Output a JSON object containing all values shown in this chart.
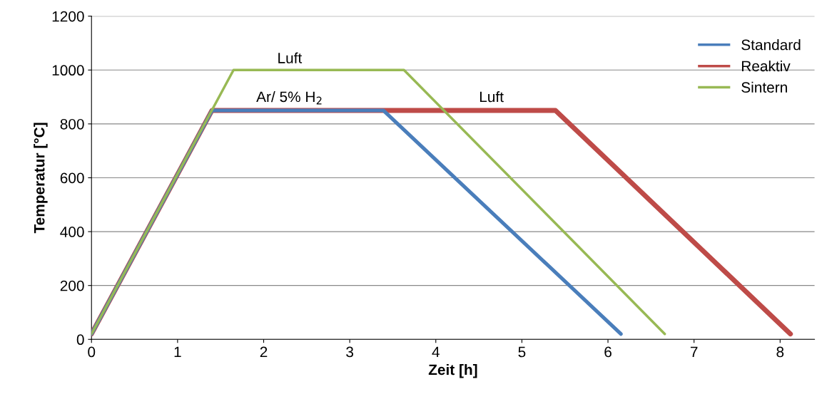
{
  "chart_data": {
    "type": "line",
    "xlabel": "Zeit [h]",
    "ylabel": "Temperatur [°C]",
    "series": [
      {
        "name": "Standard",
        "color": "#4a7ebb",
        "x": [
          0,
          1.4,
          3.39,
          6.15
        ],
        "values": [
          20,
          850,
          850,
          20
        ]
      },
      {
        "name": "Reaktiv",
        "color": "#be4b48",
        "x": [
          0,
          1.4,
          5.39,
          8.12
        ],
        "values": [
          20,
          850,
          850,
          20
        ]
      },
      {
        "name": "Sintern",
        "color": "#98b954",
        "x": [
          0,
          1.65,
          3.63,
          6.66
        ],
        "values": [
          20,
          1000,
          1000,
          20
        ]
      }
    ],
    "xlim": [
      0,
      8.4
    ],
    "xticks": [
      0,
      1,
      2,
      3,
      4,
      5,
      6,
      7,
      8
    ],
    "ylim": [
      0,
      1200
    ],
    "yticks": [
      0,
      200,
      400,
      600,
      800,
      1000,
      1200
    ],
    "grid": "y",
    "legend": "top right",
    "marker": "none",
    "line_style": "solid",
    "annotations": [
      "Luft",
      "Ar/ 5% H$_{2}$",
      "Luft"
    ]
  }
}
